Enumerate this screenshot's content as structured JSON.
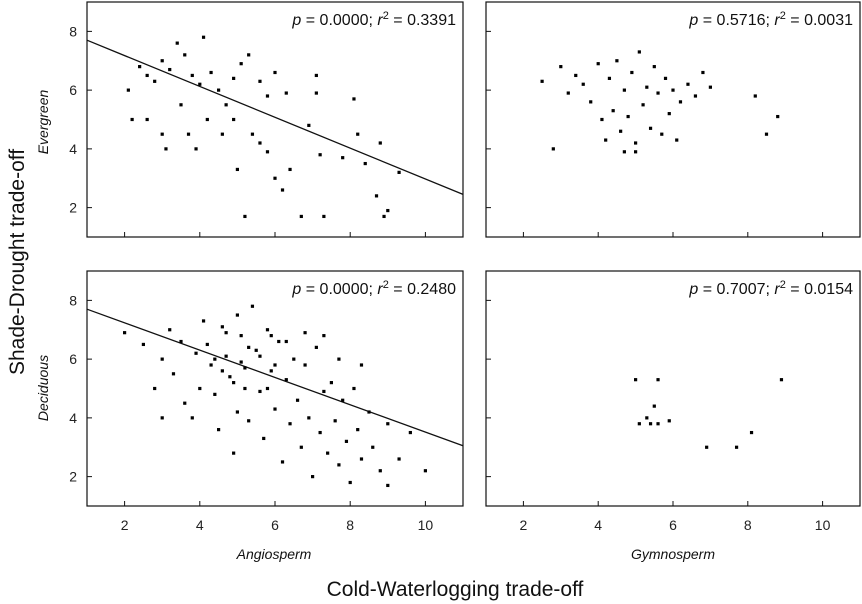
{
  "figure": {
    "ylabel": "Shade-Drought trade-off",
    "xlabel": "Cold-Waterlogging trade-off",
    "row_labels": [
      "Evergreen",
      "Deciduous"
    ],
    "col_labels": [
      "Angiosperm",
      "Gymnosperm"
    ]
  },
  "chart_data": [
    {
      "type": "scatter",
      "row_label": "Evergreen",
      "col_label": "Angiosperm",
      "xlim": [
        1,
        11
      ],
      "ylim": [
        1,
        9
      ],
      "xticks": [
        2,
        4,
        6,
        8,
        10
      ],
      "yticks": [
        2,
        4,
        6,
        8
      ],
      "xtick_labels": [],
      "ytick_labels": [
        "2",
        "4",
        "6",
        "8"
      ],
      "p_label": "p",
      "p_value": "0.0000",
      "r2_label": "r",
      "r2_value": "0.3391",
      "regression": {
        "x": [
          1,
          11
        ],
        "y": [
          7.7,
          2.45
        ]
      },
      "points": [
        [
          2.1,
          6.0
        ],
        [
          2.4,
          6.8
        ],
        [
          2.6,
          6.5
        ],
        [
          2.8,
          6.3
        ],
        [
          3.0,
          7.0
        ],
        [
          3.2,
          6.7
        ],
        [
          3.4,
          7.6
        ],
        [
          3.6,
          7.2
        ],
        [
          3.8,
          6.5
        ],
        [
          4.0,
          6.2
        ],
        [
          4.1,
          7.8
        ],
        [
          4.3,
          6.6
        ],
        [
          4.5,
          6.0
        ],
        [
          4.7,
          5.5
        ],
        [
          4.9,
          6.4
        ],
        [
          5.1,
          6.9
        ],
        [
          5.3,
          7.2
        ],
        [
          5.6,
          6.3
        ],
        [
          5.8,
          5.8
        ],
        [
          6.0,
          6.6
        ],
        [
          6.3,
          5.9
        ],
        [
          2.2,
          5.0
        ],
        [
          2.6,
          5.0
        ],
        [
          3.0,
          4.5
        ],
        [
          3.1,
          4.0
        ],
        [
          3.5,
          5.5
        ],
        [
          3.7,
          4.5
        ],
        [
          3.9,
          4.0
        ],
        [
          4.2,
          5.0
        ],
        [
          4.6,
          4.5
        ],
        [
          4.9,
          5.0
        ],
        [
          5.0,
          3.3
        ],
        [
          5.2,
          1.7
        ],
        [
          5.4,
          4.5
        ],
        [
          5.6,
          4.2
        ],
        [
          5.8,
          3.9
        ],
        [
          6.0,
          3.0
        ],
        [
          6.2,
          2.6
        ],
        [
          6.4,
          3.3
        ],
        [
          6.7,
          1.7
        ],
        [
          6.9,
          4.8
        ],
        [
          7.1,
          5.9
        ],
        [
          7.2,
          3.8
        ],
        [
          7.3,
          1.7
        ],
        [
          7.8,
          3.7
        ],
        [
          8.1,
          5.7
        ],
        [
          8.4,
          3.5
        ],
        [
          8.7,
          2.4
        ],
        [
          8.9,
          1.7
        ],
        [
          9.0,
          1.9
        ],
        [
          9.3,
          3.2
        ],
        [
          8.8,
          4.2
        ],
        [
          8.2,
          4.5
        ],
        [
          7.1,
          6.5
        ]
      ]
    },
    {
      "type": "scatter",
      "row_label": "Evergreen",
      "col_label": "Gymnosperm",
      "xlim": [
        1,
        11
      ],
      "ylim": [
        1,
        9
      ],
      "xticks": [
        2,
        4,
        6,
        8,
        10
      ],
      "yticks": [
        2,
        4,
        6,
        8
      ],
      "xtick_labels": [],
      "ytick_labels": [],
      "p_label": "p",
      "p_value": "0.5716",
      "r2_label": "r",
      "r2_value": "0.0031",
      "points": [
        [
          2.5,
          6.3
        ],
        [
          2.8,
          4.0
        ],
        [
          3.0,
          6.8
        ],
        [
          3.2,
          5.9
        ],
        [
          3.4,
          6.5
        ],
        [
          3.6,
          6.2
        ],
        [
          3.8,
          5.6
        ],
        [
          4.0,
          6.9
        ],
        [
          4.1,
          5.0
        ],
        [
          4.2,
          4.3
        ],
        [
          4.3,
          6.4
        ],
        [
          4.4,
          5.3
        ],
        [
          4.5,
          7.0
        ],
        [
          4.6,
          4.6
        ],
        [
          4.7,
          6.0
        ],
        [
          4.8,
          5.1
        ],
        [
          4.9,
          6.6
        ],
        [
          5.0,
          4.2
        ],
        [
          5.1,
          7.3
        ],
        [
          5.2,
          5.5
        ],
        [
          5.3,
          6.1
        ],
        [
          5.4,
          4.7
        ],
        [
          5.5,
          6.8
        ],
        [
          5.6,
          5.9
        ],
        [
          5.7,
          4.5
        ],
        [
          5.8,
          6.4
        ],
        [
          5.9,
          5.2
        ],
        [
          6.0,
          6.0
        ],
        [
          6.1,
          4.3
        ],
        [
          6.2,
          5.6
        ],
        [
          6.4,
          6.2
        ],
        [
          6.6,
          5.8
        ],
        [
          6.8,
          6.6
        ],
        [
          7.0,
          6.1
        ],
        [
          8.2,
          5.8
        ],
        [
          8.5,
          4.5
        ],
        [
          8.8,
          5.1
        ],
        [
          5.0,
          3.9
        ],
        [
          4.7,
          3.9
        ]
      ]
    },
    {
      "type": "scatter",
      "row_label": "Deciduous",
      "col_label": "Angiosperm",
      "xlim": [
        1,
        11
      ],
      "ylim": [
        1,
        9
      ],
      "xticks": [
        2,
        4,
        6,
        8,
        10
      ],
      "yticks": [
        2,
        4,
        6,
        8
      ],
      "xtick_labels": [
        "2",
        "4",
        "6",
        "8",
        "10"
      ],
      "ytick_labels": [
        "2",
        "4",
        "6",
        "8"
      ],
      "p_label": "p",
      "p_value": "0.0000",
      "r2_label": "r",
      "r2_value": "0.2480",
      "regression": {
        "x": [
          1,
          11
        ],
        "y": [
          7.7,
          3.05
        ]
      },
      "points": [
        [
          2.0,
          6.9
        ],
        [
          2.5,
          6.5
        ],
        [
          2.8,
          5.0
        ],
        [
          3.0,
          6.0
        ],
        [
          3.0,
          4.0
        ],
        [
          3.2,
          7.0
        ],
        [
          3.3,
          5.5
        ],
        [
          3.5,
          6.6
        ],
        [
          3.6,
          4.5
        ],
        [
          3.8,
          4.0
        ],
        [
          3.9,
          6.2
        ],
        [
          4.0,
          5.0
        ],
        [
          4.1,
          7.3
        ],
        [
          4.2,
          6.5
        ],
        [
          4.3,
          5.8
        ],
        [
          4.4,
          4.8
        ],
        [
          4.5,
          3.6
        ],
        [
          4.6,
          7.1
        ],
        [
          4.7,
          6.1
        ],
        [
          4.8,
          5.4
        ],
        [
          4.9,
          2.8
        ],
        [
          5.0,
          7.5
        ],
        [
          5.0,
          4.2
        ],
        [
          5.1,
          6.8
        ],
        [
          5.2,
          5.7
        ],
        [
          5.3,
          3.9
        ],
        [
          5.4,
          7.8
        ],
        [
          5.5,
          6.3
        ],
        [
          5.6,
          4.9
        ],
        [
          5.7,
          3.3
        ],
        [
          5.8,
          7.0
        ],
        [
          5.9,
          5.6
        ],
        [
          6.0,
          4.3
        ],
        [
          6.1,
          6.6
        ],
        [
          6.2,
          2.5
        ],
        [
          6.3,
          5.3
        ],
        [
          6.4,
          3.8
        ],
        [
          6.5,
          6.0
        ],
        [
          6.6,
          4.6
        ],
        [
          6.7,
          3.0
        ],
        [
          6.8,
          5.8
        ],
        [
          6.9,
          4.0
        ],
        [
          7.0,
          2.0
        ],
        [
          7.1,
          6.4
        ],
        [
          7.2,
          3.5
        ],
        [
          7.3,
          4.9
        ],
        [
          7.4,
          2.8
        ],
        [
          7.5,
          5.2
        ],
        [
          7.6,
          3.9
        ],
        [
          7.7,
          2.4
        ],
        [
          7.8,
          4.6
        ],
        [
          7.9,
          3.2
        ],
        [
          8.0,
          1.8
        ],
        [
          8.1,
          5.0
        ],
        [
          8.2,
          3.6
        ],
        [
          8.3,
          2.6
        ],
        [
          8.5,
          4.2
        ],
        [
          8.6,
          3.0
        ],
        [
          8.8,
          2.2
        ],
        [
          9.0,
          1.7
        ],
        [
          9.0,
          3.8
        ],
        [
          9.3,
          2.6
        ],
        [
          9.6,
          3.5
        ],
        [
          10.0,
          2.2
        ],
        [
          4.7,
          6.9
        ],
        [
          5.1,
          5.9
        ],
        [
          5.3,
          6.4
        ],
        [
          4.9,
          5.2
        ],
        [
          5.6,
          6.1
        ],
        [
          4.4,
          6.0
        ],
        [
          5.8,
          5.0
        ],
        [
          5.2,
          5.0
        ],
        [
          6.0,
          5.8
        ],
        [
          4.6,
          5.6
        ],
        [
          5.9,
          6.8
        ],
        [
          6.3,
          6.6
        ],
        [
          6.8,
          6.9
        ],
        [
          7.3,
          6.8
        ],
        [
          7.7,
          6.0
        ],
        [
          8.3,
          5.8
        ]
      ]
    },
    {
      "type": "scatter",
      "row_label": "Deciduous",
      "col_label": "Gymnosperm",
      "xlim": [
        1,
        11
      ],
      "ylim": [
        1,
        9
      ],
      "xticks": [
        2,
        4,
        6,
        8,
        10
      ],
      "yticks": [
        2,
        4,
        6,
        8
      ],
      "xtick_labels": [
        "2",
        "4",
        "6",
        "8",
        "10"
      ],
      "ytick_labels": [],
      "p_label": "p",
      "p_value": "0.7007",
      "r2_label": "r",
      "r2_value": "0.0154",
      "points": [
        [
          5.0,
          5.3
        ],
        [
          5.1,
          3.8
        ],
        [
          5.3,
          4.0
        ],
        [
          5.4,
          3.8
        ],
        [
          5.5,
          4.4
        ],
        [
          5.6,
          5.3
        ],
        [
          5.6,
          3.8
        ],
        [
          5.9,
          3.9
        ],
        [
          6.9,
          3.0
        ],
        [
          7.7,
          3.0
        ],
        [
          8.1,
          3.5
        ],
        [
          8.9,
          5.3
        ]
      ]
    }
  ]
}
